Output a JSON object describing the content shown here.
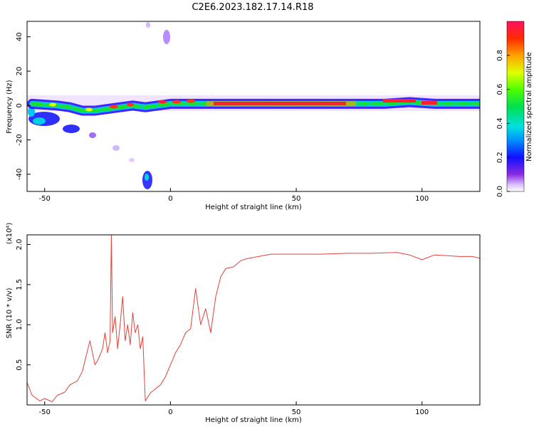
{
  "title": "C2E6.2023.182.17.14.R18",
  "chart_data": [
    {
      "type": "heatmap",
      "xlabel": "Height of straight line (km)",
      "ylabel": "Frequency (Hz)",
      "xlim": [
        -57,
        123
      ],
      "ylim": [
        -50,
        49
      ],
      "xticks": [
        -50,
        0,
        50,
        100
      ],
      "yticks": [
        -40,
        -20,
        0,
        20,
        40
      ],
      "colorbar": {
        "label": "Normalized spectral amplitude",
        "range": [
          0,
          1
        ],
        "ticks": [
          "0.0",
          "0.2",
          "0.4",
          "0.6",
          "0.8"
        ]
      },
      "ridge": [
        {
          "x": -55,
          "y": 1
        },
        {
          "x": -45,
          "y": 0
        },
        {
          "x": -40,
          "y": -1
        },
        {
          "x": -35,
          "y": -3
        },
        {
          "x": -30,
          "y": -3
        },
        {
          "x": -25,
          "y": -2
        },
        {
          "x": -20,
          "y": -1
        },
        {
          "x": -15,
          "y": 0
        },
        {
          "x": -10,
          "y": -1
        },
        {
          "x": -5,
          "y": 0
        },
        {
          "x": 0,
          "y": 1
        },
        {
          "x": 10,
          "y": 1
        },
        {
          "x": 20,
          "y": 1
        },
        {
          "x": 40,
          "y": 1
        },
        {
          "x": 60,
          "y": 1
        },
        {
          "x": 75,
          "y": 1
        },
        {
          "x": 85,
          "y": 1
        },
        {
          "x": 95,
          "y": 2
        },
        {
          "x": 105,
          "y": 1
        },
        {
          "x": 123,
          "y": 1
        }
      ],
      "grid": false
    },
    {
      "type": "line",
      "xlabel": "Height of straight line (km)",
      "ylabel": "SNR (10 * v/v)",
      "multiplier": "(x10⁴)",
      "xlim": [
        -57,
        123
      ],
      "ylim": [
        0,
        2.12
      ],
      "xticks": [
        -50,
        0,
        50,
        100
      ],
      "yticks": [
        "0.5",
        "1.0",
        "1.5",
        "2.0"
      ],
      "color": "#e8403a",
      "x": [
        -57,
        -55,
        -52,
        -50,
        -47,
        -45,
        -42,
        -40,
        -37,
        -35,
        -32,
        -30,
        -29,
        -28,
        -27,
        -26,
        -25,
        -24,
        -23.5,
        -23,
        -22,
        -21,
        -20,
        -19,
        -18,
        -17,
        -16,
        -15,
        -14,
        -13,
        -12,
        -11,
        -10,
        -9,
        -8,
        -6,
        -4,
        -2,
        0,
        2,
        4,
        6,
        8,
        10,
        12,
        14,
        16,
        18,
        20,
        22,
        25,
        28,
        30,
        35,
        40,
        45,
        50,
        60,
        70,
        80,
        90,
        95,
        100,
        105,
        110,
        115,
        120,
        123
      ],
      "y": [
        0.28,
        0.12,
        0.05,
        0.08,
        0.04,
        0.12,
        0.16,
        0.25,
        0.3,
        0.42,
        0.8,
        0.5,
        0.55,
        0.62,
        0.7,
        0.9,
        0.65,
        0.8,
        2.12,
        0.9,
        1.1,
        0.7,
        1.0,
        1.35,
        0.8,
        1.0,
        0.75,
        1.15,
        0.9,
        1.0,
        0.7,
        0.85,
        0.05,
        0.1,
        0.15,
        0.2,
        0.25,
        0.35,
        0.5,
        0.65,
        0.75,
        0.9,
        0.95,
        1.45,
        1.0,
        1.2,
        0.9,
        1.35,
        1.6,
        1.7,
        1.72,
        1.8,
        1.82,
        1.85,
        1.88,
        1.88,
        1.88,
        1.88,
        1.89,
        1.89,
        1.9,
        1.87,
        1.81,
        1.87,
        1.86,
        1.85,
        1.85,
        1.83
      ]
    }
  ]
}
